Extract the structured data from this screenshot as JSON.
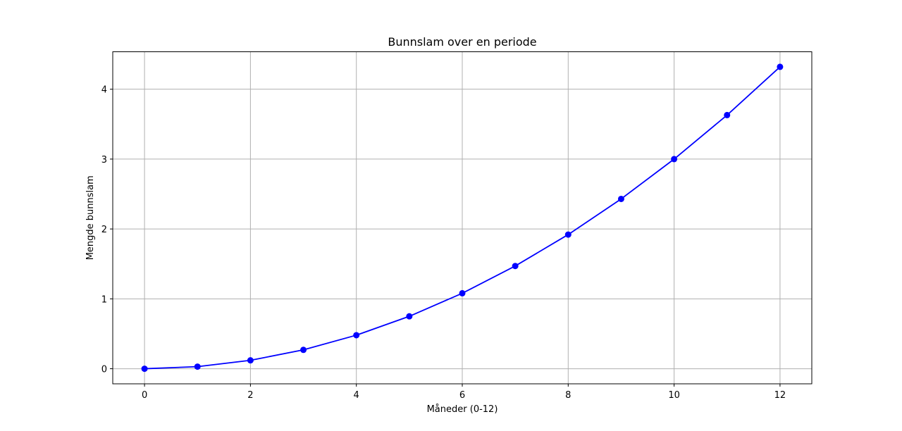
{
  "chart_data": {
    "type": "line",
    "title": "Bunnslam over en periode",
    "xlabel": "Måneder (0-12)",
    "ylabel": "Mengde bunnslam",
    "xlim": [
      -0.6,
      12.6
    ],
    "ylim": [
      -0.216,
      4.536
    ],
    "xticks": [
      "0",
      "2",
      "4",
      "6",
      "8",
      "10",
      "12"
    ],
    "yticks": [
      "0",
      "1",
      "2",
      "3",
      "4"
    ],
    "grid": true,
    "series": [
      {
        "color": "#0000ff",
        "marker": "circle",
        "x": [
          0,
          1,
          2,
          3,
          4,
          5,
          6,
          7,
          8,
          9,
          10,
          11,
          12
        ],
        "y": [
          0,
          0.03,
          0.12,
          0.27,
          0.48,
          0.75,
          1.08,
          1.47,
          1.92,
          2.43,
          3.0,
          3.63,
          4.32
        ]
      }
    ]
  }
}
